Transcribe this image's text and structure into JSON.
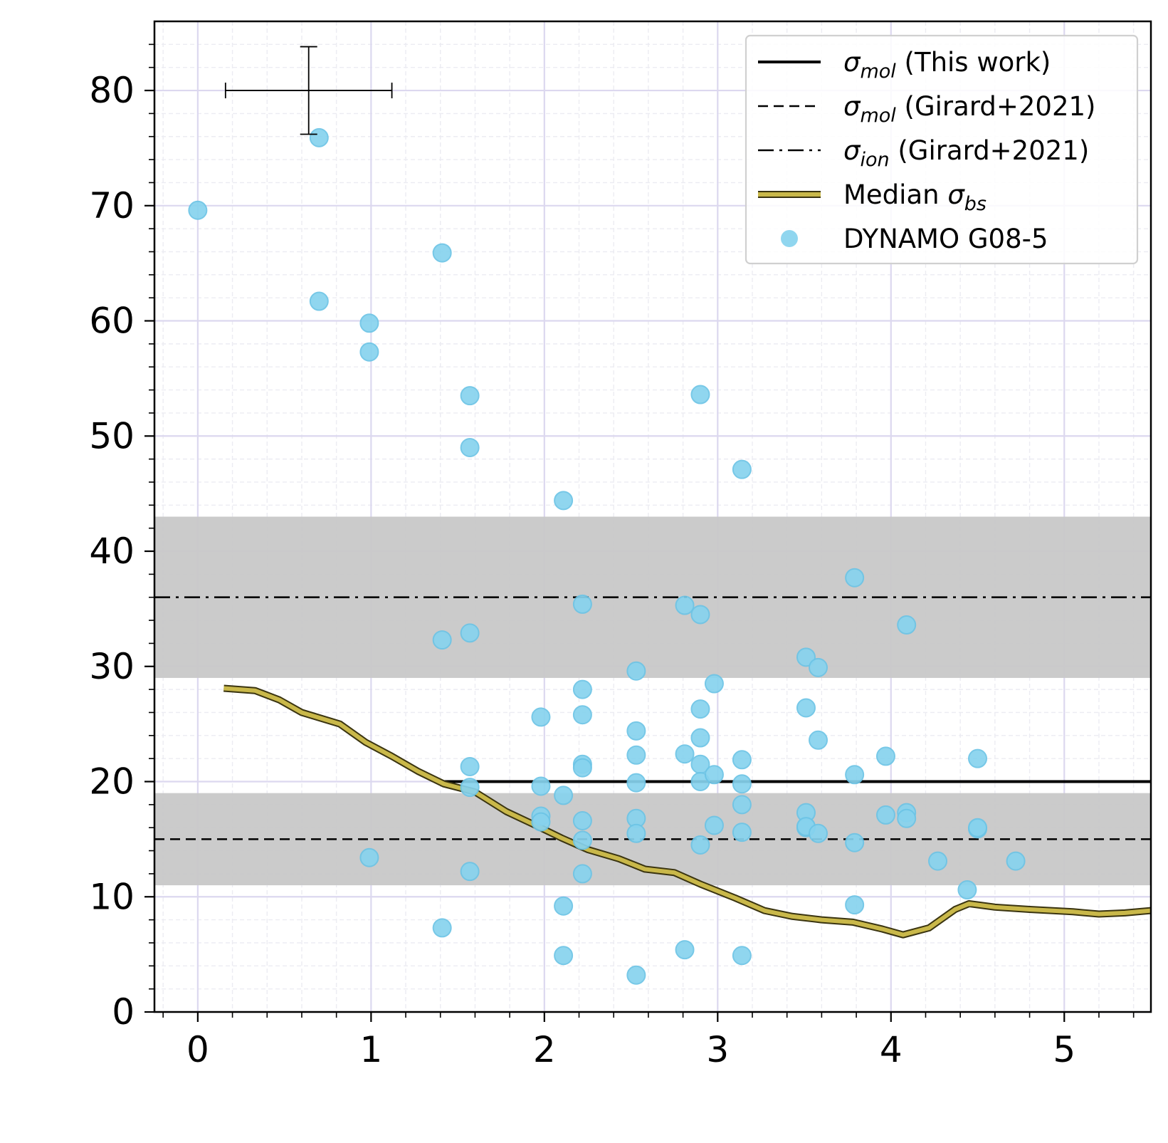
{
  "chart_data": {
    "type": "scatter",
    "title": "",
    "xlabel": "",
    "ylabel": "",
    "xlim": [
      -0.25,
      5.5
    ],
    "ylim": [
      0,
      86
    ],
    "x_ticks": [
      0,
      1,
      2,
      3,
      4,
      5
    ],
    "y_ticks": [
      0,
      10,
      20,
      30,
      40,
      50,
      60,
      70,
      80
    ],
    "grid": true,
    "legend_position": "top-right",
    "shaded_bands": [
      {
        "y_min": 11,
        "y_max": 19,
        "color": "#c8c8c8"
      },
      {
        "y_min": 29,
        "y_max": 43,
        "color": "#c8c8c8"
      }
    ],
    "reference_lines": [
      {
        "name": "σ_mol (This work)",
        "style": "solid",
        "y": 20,
        "x_start": 1.42,
        "x_end": 5.5,
        "color": "#000000"
      },
      {
        "name": "σ_mol (Girard+2021)",
        "style": "dashed",
        "y": 15,
        "x_start": -0.25,
        "x_end": 5.5,
        "color": "#000000"
      },
      {
        "name": "σ_ion (Girard+2021)",
        "style": "dashdot",
        "y": 36,
        "x_start": -0.25,
        "x_end": 5.5,
        "color": "#000000"
      }
    ],
    "median_series": {
      "name": "Median σ_bs",
      "color": "#c9b84a",
      "x": [
        0.15,
        0.33,
        0.47,
        0.6,
        0.82,
        0.97,
        1.12,
        1.27,
        1.42,
        1.6,
        1.78,
        1.95,
        2.1,
        2.25,
        2.43,
        2.58,
        2.75,
        2.9,
        3.1,
        3.27,
        3.43,
        3.6,
        3.78,
        3.95,
        4.07,
        4.22,
        4.37,
        4.45,
        4.6,
        4.8,
        5.05,
        5.2,
        5.35,
        5.5
      ],
      "y": [
        28.1,
        27.9,
        27.1,
        26.0,
        25.0,
        23.4,
        22.2,
        20.9,
        19.8,
        19.1,
        17.4,
        16.2,
        15.1,
        14.1,
        13.3,
        12.4,
        12.1,
        11.1,
        9.9,
        8.8,
        8.3,
        8.0,
        7.8,
        7.2,
        6.7,
        7.3,
        8.9,
        9.4,
        9.1,
        8.9,
        8.7,
        8.5,
        8.6,
        8.8
      ]
    },
    "scatter_series": {
      "name": "DYNAMO G08-5",
      "color": "#87d3ee",
      "points": [
        [
          0.0,
          69.6
        ],
        [
          0.7,
          75.9
        ],
        [
          0.7,
          61.7
        ],
        [
          0.99,
          59.8
        ],
        [
          0.99,
          57.3
        ],
        [
          0.99,
          13.4
        ],
        [
          1.41,
          65.9
        ],
        [
          1.41,
          32.3
        ],
        [
          1.41,
          7.3
        ],
        [
          1.57,
          53.5
        ],
        [
          1.57,
          49.0
        ],
        [
          1.57,
          32.9
        ],
        [
          1.57,
          21.3
        ],
        [
          1.57,
          19.5
        ],
        [
          1.57,
          12.2
        ],
        [
          1.98,
          25.6
        ],
        [
          1.98,
          19.6
        ],
        [
          1.98,
          17.0
        ],
        [
          1.98,
          16.5
        ],
        [
          2.11,
          44.4
        ],
        [
          2.11,
          18.8
        ],
        [
          2.11,
          9.2
        ],
        [
          2.11,
          4.9
        ],
        [
          2.22,
          35.4
        ],
        [
          2.22,
          28.0
        ],
        [
          2.22,
          25.8
        ],
        [
          2.22,
          21.5
        ],
        [
          2.22,
          21.2
        ],
        [
          2.22,
          16.6
        ],
        [
          2.22,
          14.9
        ],
        [
          2.22,
          12.0
        ],
        [
          2.53,
          29.6
        ],
        [
          2.53,
          24.4
        ],
        [
          2.53,
          22.3
        ],
        [
          2.53,
          19.9
        ],
        [
          2.53,
          16.8
        ],
        [
          2.53,
          15.5
        ],
        [
          2.53,
          3.2
        ],
        [
          2.81,
          35.3
        ],
        [
          2.81,
          22.4
        ],
        [
          2.81,
          5.4
        ],
        [
          2.9,
          53.6
        ],
        [
          2.9,
          34.5
        ],
        [
          2.9,
          26.3
        ],
        [
          2.9,
          23.8
        ],
        [
          2.9,
          21.5
        ],
        [
          2.9,
          20.0
        ],
        [
          2.9,
          14.5
        ],
        [
          2.98,
          28.5
        ],
        [
          2.98,
          20.6
        ],
        [
          2.98,
          16.2
        ],
        [
          3.14,
          47.1
        ],
        [
          3.14,
          21.9
        ],
        [
          3.14,
          19.8
        ],
        [
          3.14,
          18.0
        ],
        [
          3.14,
          15.6
        ],
        [
          3.14,
          4.9
        ],
        [
          3.51,
          30.8
        ],
        [
          3.51,
          26.4
        ],
        [
          3.51,
          17.3
        ],
        [
          3.51,
          16.0
        ],
        [
          3.51,
          16.1
        ],
        [
          3.58,
          29.9
        ],
        [
          3.58,
          23.6
        ],
        [
          3.58,
          15.5
        ],
        [
          3.79,
          37.7
        ],
        [
          3.79,
          20.6
        ],
        [
          3.79,
          14.7
        ],
        [
          3.79,
          9.3
        ],
        [
          3.97,
          22.2
        ],
        [
          3.97,
          17.1
        ],
        [
          4.09,
          33.6
        ],
        [
          4.09,
          17.3
        ],
        [
          4.09,
          16.8
        ],
        [
          4.27,
          13.1
        ],
        [
          4.44,
          10.6
        ],
        [
          4.5,
          22.0
        ],
        [
          4.5,
          15.9
        ],
        [
          4.5,
          16.0
        ],
        [
          4.72,
          13.1
        ]
      ]
    },
    "error_bar_marker": {
      "x": 0.64,
      "y": 80.0,
      "x_err_low": 0.48,
      "x_err_high": 0.48,
      "y_err_low": 3.8,
      "y_err_high": 3.8
    },
    "legend": [
      {
        "label_main": "σ",
        "label_sub": "mol",
        "label_rest": " (This work)",
        "style": "solid"
      },
      {
        "label_main": "σ",
        "label_sub": "mol",
        "label_rest": " (Girard+2021)",
        "style": "dashed"
      },
      {
        "label_main": "σ",
        "label_sub": "ion",
        "label_rest": " (Girard+2021)",
        "style": "dashdot"
      },
      {
        "label_pre": "Median ",
        "label_main": "σ",
        "label_sub": "bs",
        "label_rest": "",
        "style": "median"
      },
      {
        "label_pre": "DYNAMO G08-5",
        "label_main": "",
        "label_sub": "",
        "label_rest": "",
        "style": "scatter"
      }
    ]
  }
}
